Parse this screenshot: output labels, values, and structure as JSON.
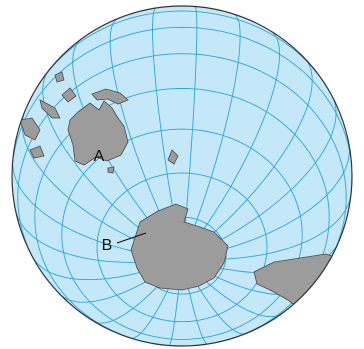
{
  "map": {
    "labels": [
      "A",
      "B"
    ]
  }
}
